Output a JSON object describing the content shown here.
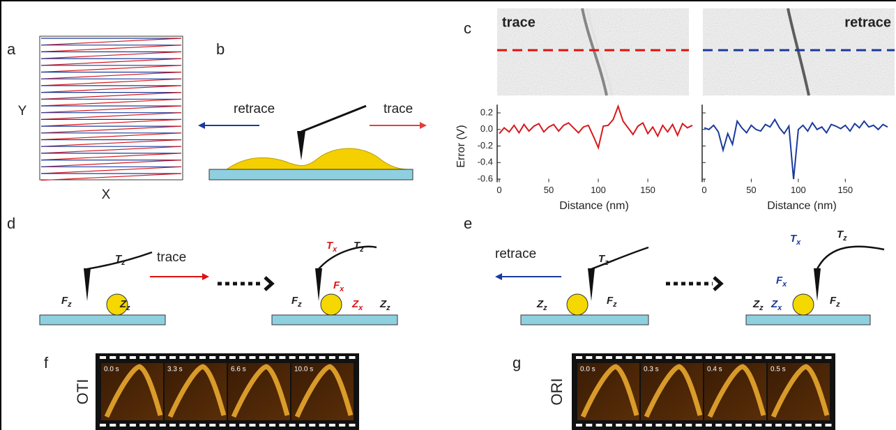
{
  "panel_labels": [
    "a",
    "b",
    "c",
    "d",
    "e",
    "f",
    "g"
  ],
  "panel_a": {
    "y_axis": "Y",
    "x_axis": "X"
  },
  "panel_b": {
    "retrace": "retrace",
    "trace": "trace"
  },
  "panel_c": {
    "image_titles": [
      "trace",
      "retrace"
    ],
    "y_label": "Error (V)",
    "x_labels": [
      "Distance (nm)",
      "Distance (nm)"
    ],
    "xlim": [
      0,
      195
    ],
    "xticks": [
      0,
      50,
      100,
      150
    ],
    "ylim": [
      -0.62,
      0.3
    ],
    "yticks": [
      0.2,
      {
        "value": 0,
        "label": "0.0"
      },
      -0.2,
      -0.4,
      -0.6
    ],
    "x": [
      0,
      5,
      10,
      15,
      20,
      25,
      30,
      35,
      40,
      45,
      50,
      55,
      60,
      65,
      70,
      75,
      80,
      85,
      90,
      95,
      100,
      105,
      110,
      115,
      120,
      125,
      130,
      135,
      140,
      145,
      150,
      155,
      160,
      165,
      170,
      175,
      180,
      185,
      190,
      195
    ],
    "series": [
      {
        "color": "#d7191c",
        "values": [
          -0.05,
          0.02,
          -0.03,
          0.05,
          -0.04,
          0.06,
          -0.02,
          0.04,
          0.07,
          -0.03,
          0.03,
          0.06,
          -0.02,
          0.05,
          0.08,
          0.02,
          -0.04,
          0.03,
          0.05,
          -0.08,
          -0.22,
          0.04,
          0.05,
          0.12,
          0.28,
          0.1,
          0.02,
          -0.06,
          0.04,
          0.08,
          -0.05,
          0.03,
          -0.08,
          0.05,
          -0.03,
          0.06,
          -0.07,
          0.07,
          0.02,
          0.05
        ]
      },
      {
        "color": "#1a3a9c",
        "values": [
          0.02,
          0,
          0.05,
          -0.03,
          -0.25,
          -0.05,
          -0.18,
          0.1,
          0.02,
          -0.04,
          0.05,
          0,
          -0.02,
          0.06,
          0.03,
          0.12,
          0.02,
          -0.05,
          0.04,
          -0.6,
          0,
          0.05,
          -0.02,
          0.08,
          0,
          0.03,
          -0.04,
          0.06,
          0.04,
          0.01,
          0.05,
          -0.02,
          0.07,
          0.02,
          0.1,
          0.03,
          0.05,
          0,
          0.06,
          0.03
        ]
      }
    ]
  },
  "panel_d": {
    "direction": "trace",
    "forces_before": [
      {
        "main": "T",
        "sub": "z",
        "color": "#222"
      },
      {
        "main": "F",
        "sub": "z",
        "color": "#222"
      },
      {
        "main": "Z",
        "sub": "z",
        "color": "#222"
      }
    ],
    "forces_after": [
      {
        "main": "T",
        "sub": "x",
        "color": "#d7191c"
      },
      {
        "main": "T",
        "sub": "z",
        "color": "#222"
      },
      {
        "main": "F",
        "sub": "x",
        "color": "#d7191c"
      },
      {
        "main": "F",
        "sub": "z",
        "color": "#222"
      },
      {
        "main": "Z",
        "sub": "x",
        "color": "#d7191c"
      },
      {
        "main": "Z",
        "sub": "z",
        "color": "#222"
      }
    ]
  },
  "panel_e": {
    "direction": "retrace",
    "forces_before": [
      {
        "main": "T",
        "sub": "z",
        "color": "#222"
      },
      {
        "main": "Z",
        "sub": "z",
        "color": "#222"
      },
      {
        "main": "F",
        "sub": "z",
        "color": "#222"
      }
    ],
    "forces_after": [
      {
        "main": "T",
        "sub": "x",
        "color": "#1a3a9c"
      },
      {
        "main": "T",
        "sub": "z",
        "color": "#222"
      },
      {
        "main": "F",
        "sub": "x",
        "color": "#1a3a9c"
      },
      {
        "main": "Z",
        "sub": "z",
        "color": "#222"
      },
      {
        "main": "Z",
        "sub": "x",
        "color": "#1a3a9c"
      },
      {
        "main": "F",
        "sub": "z",
        "color": "#222"
      }
    ]
  },
  "panel_f": {
    "mode": "OTI",
    "times": [
      "0.0 s",
      "3.3 s",
      "6.6 s",
      "10.0 s"
    ]
  },
  "panel_g": {
    "mode": "ORI",
    "times": [
      "0.0 s",
      "0.3 s",
      "0.4 s",
      "0.5 s"
    ]
  }
}
